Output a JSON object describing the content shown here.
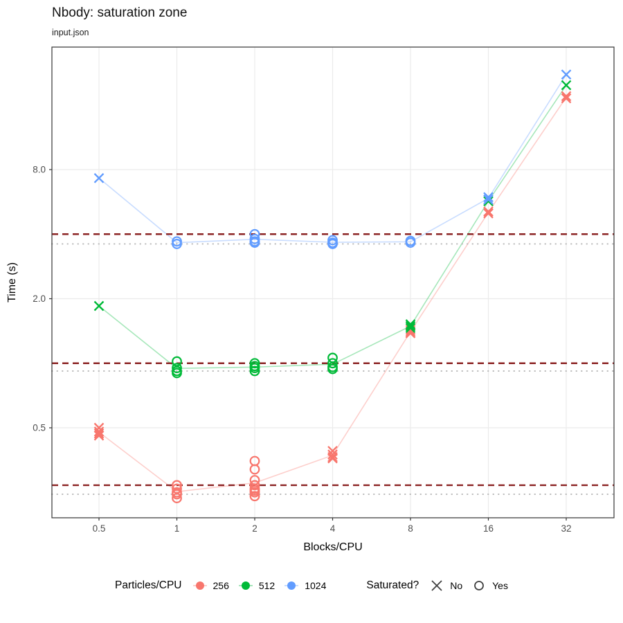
{
  "header": {
    "title": "Nbody: saturation zone",
    "subtitle": "input.json"
  },
  "chart_data": {
    "type": "scatter",
    "title": "Nbody: saturation zone",
    "subtitle": "input.json",
    "xlabel": "Blocks/CPU",
    "ylabel": "Time (s)",
    "x_scale": "log2",
    "y_scale": "log",
    "grid": "major-only",
    "panel_border": true,
    "x_ticks": [
      0.5,
      1,
      2,
      4,
      8,
      16,
      32
    ],
    "x_tick_labels": [
      "0.5",
      "1",
      "2",
      "4",
      "8",
      "16",
      "32"
    ],
    "y_ticks": [
      0.5,
      2.0,
      8.0
    ],
    "y_tick_labels": [
      "0.5",
      "2.0",
      "8.0"
    ],
    "x_range": [
      0.35,
      45
    ],
    "y_range": [
      0.19,
      30
    ],
    "colors": {
      "series_256": "#F8766D",
      "series_512": "#00BA38",
      "series_1024": "#619CFF",
      "ref_dashed": "#8B2323",
      "ref_dotted": "#B8B8B8",
      "gridline": "#EBEBEB",
      "axis_text": "#4D4D4D",
      "panel_border": "#333333"
    },
    "ref_lines": {
      "dashed_values": [
        4.0,
        1.0,
        0.27
      ],
      "dotted_values": [
        3.6,
        0.92,
        0.245
      ]
    },
    "series": [
      {
        "name": "256",
        "color": "#F8766D",
        "groups": [
          {
            "x": 0.5,
            "saturated": "No",
            "times": [
              0.5,
              0.48,
              0.47,
              0.46
            ]
          },
          {
            "x": 1,
            "saturated": "Yes",
            "times": [
              0.27,
              0.26,
              0.25,
              0.245,
              0.235
            ]
          },
          {
            "x": 2,
            "saturated": "Yes",
            "times": [
              0.35,
              0.32,
              0.285,
              0.27,
              0.26,
              0.255,
              0.25,
              0.24
            ]
          },
          {
            "x": 4,
            "saturated": "No",
            "times": [
              0.39,
              0.375,
              0.365,
              0.36
            ]
          },
          {
            "x": 8,
            "saturated": "No",
            "times": [
              1.43,
              1.4,
              1.38
            ]
          },
          {
            "x": 16,
            "saturated": "No",
            "times": [
              5.1,
              5.0
            ]
          },
          {
            "x": 32,
            "saturated": "No",
            "times": [
              17.6,
              17.2
            ]
          }
        ]
      },
      {
        "name": "512",
        "color": "#00BA38",
        "groups": [
          {
            "x": 0.5,
            "saturated": "No",
            "times": [
              1.85
            ]
          },
          {
            "x": 1,
            "saturated": "Yes",
            "times": [
              1.02,
              0.95,
              0.92,
              0.9
            ]
          },
          {
            "x": 2,
            "saturated": "Yes",
            "times": [
              1.0,
              0.97,
              0.95,
              0.92
            ]
          },
          {
            "x": 4,
            "saturated": "Yes",
            "times": [
              1.06,
              1.0,
              0.96,
              0.94
            ]
          },
          {
            "x": 8,
            "saturated": "No",
            "times": [
              1.52,
              1.49,
              1.46
            ]
          },
          {
            "x": 16,
            "saturated": "No",
            "times": [
              5.7
            ]
          },
          {
            "x": 32,
            "saturated": "No",
            "times": [
              19.8
            ]
          }
        ]
      },
      {
        "name": "1024",
        "color": "#619CFF",
        "groups": [
          {
            "x": 0.5,
            "saturated": "No",
            "times": [
              7.3
            ]
          },
          {
            "x": 1,
            "saturated": "Yes",
            "times": [
              3.7,
              3.6
            ]
          },
          {
            "x": 2,
            "saturated": "Yes",
            "times": [
              4.0,
              3.8,
              3.7,
              3.65
            ]
          },
          {
            "x": 4,
            "saturated": "Yes",
            "times": [
              3.75,
              3.65,
              3.6
            ]
          },
          {
            "x": 8,
            "saturated": "Yes",
            "times": [
              3.72,
              3.65
            ]
          },
          {
            "x": 16,
            "saturated": "No",
            "times": [
              5.95,
              5.8
            ]
          },
          {
            "x": 32,
            "saturated": "No",
            "times": [
              22.2
            ]
          }
        ]
      }
    ],
    "legend": {
      "color_title": "Particles/CPU",
      "color_items": [
        {
          "label": "256",
          "color": "#F8766D"
        },
        {
          "label": "512",
          "color": "#00BA38"
        },
        {
          "label": "1024",
          "color": "#619CFF"
        }
      ],
      "shape_title": "Saturated?",
      "shape_items": [
        {
          "label": "No",
          "shape": "x-mark"
        },
        {
          "label": "Yes",
          "shape": "open-circle"
        }
      ]
    }
  }
}
